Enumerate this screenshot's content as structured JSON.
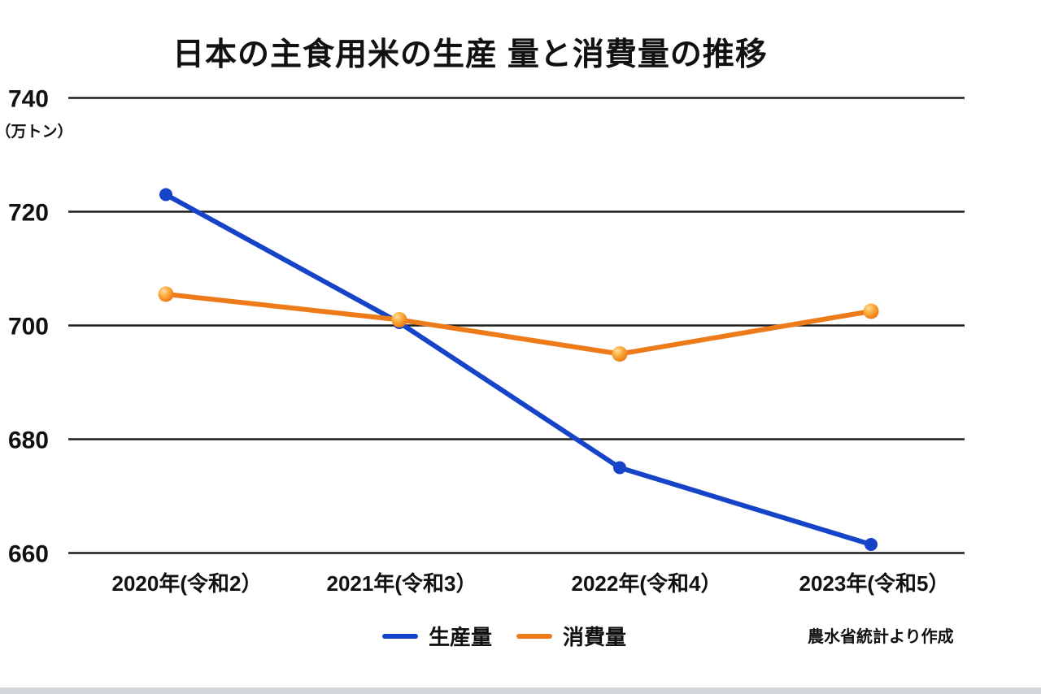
{
  "chart_data": {
    "type": "line",
    "title": "日本の主食用米の生産 量と消費量の推移",
    "unit_label": "（万トン）",
    "categories": [
      "2020年(令和2）",
      "2021年(令和3）",
      "2022年(令和4）",
      "2023年(令和5）"
    ],
    "series": [
      {
        "name": "生産量",
        "color": "#1644c8",
        "marker": "flat-circle",
        "values": [
          723,
          700.5,
          675,
          661.5
        ]
      },
      {
        "name": "消費量",
        "color": "#ee7b1a",
        "marker": "glossy-sphere",
        "values": [
          705.5,
          701,
          695,
          702.5
        ]
      }
    ],
    "ylim": [
      660,
      740
    ],
    "yticks": [
      740,
      720,
      700,
      680,
      660
    ],
    "grid": "horizontal-only",
    "gridline_color": "#1e1e1e",
    "legend_position": "bottom-center",
    "source_note": "農水省統計より作成",
    "sphere_gradient": [
      "#ffdf9e",
      "#fbac3c",
      "#ec7512"
    ]
  },
  "window": {
    "bottom_bar_color": "#d3d6db"
  }
}
